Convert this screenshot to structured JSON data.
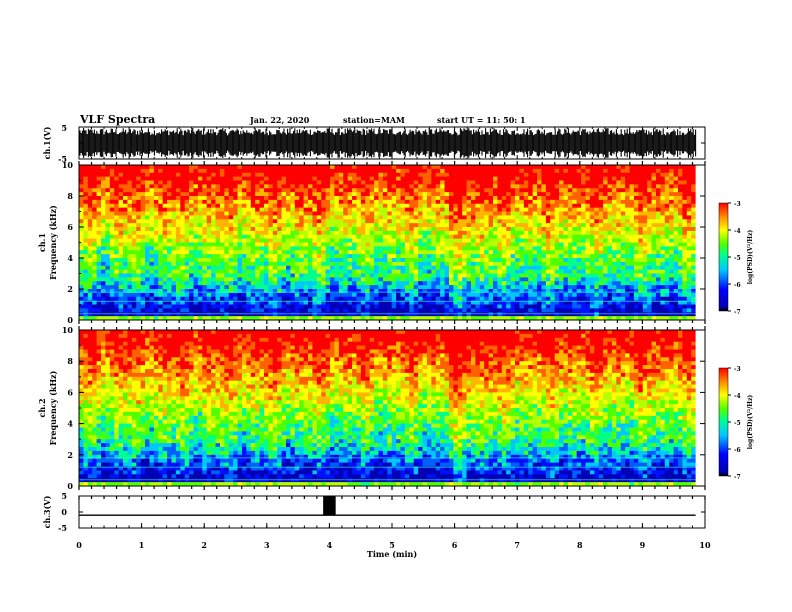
{
  "header": {
    "title": "VLF Spectra",
    "date": "Jan. 22, 2020",
    "station": "station=MAM",
    "start": "start UT =  11: 50: 1"
  },
  "colors": {
    "ink": "#000000",
    "colormap": [
      "#0000b4",
      "#0000ff",
      "#00c8ff",
      "#00ff8c",
      "#50ff00",
      "#ffff00",
      "#ff8c00",
      "#ff0000"
    ]
  },
  "chart_data": [
    {
      "type": "line",
      "name": "ch1-waveform",
      "ylabel": "ch.1(V)",
      "ylim": [
        -5,
        5
      ],
      "yticks": [
        "5",
        "-5"
      ],
      "xlim": [
        0,
        10
      ],
      "description_values": {
        "min": -5,
        "max": 5
      }
    },
    {
      "type": "heatmap",
      "name": "ch1-spectrogram",
      "ylabel": "ch.1\nFrequency (kHz)",
      "ylim": [
        0,
        10
      ],
      "yticks": [
        "0",
        "2",
        "4",
        "6",
        "8",
        "10"
      ],
      "xlim": [
        0,
        10
      ],
      "colorbar": {
        "label": "log(PSD)(V²/Hz)",
        "range": [
          -7,
          -3
        ],
        "ticks": [
          "-3",
          "-4",
          "-5",
          "-6",
          "-7"
        ]
      }
    },
    {
      "type": "heatmap",
      "name": "ch2-spectrogram",
      "ylabel": "ch.2\nFrequency (kHz)",
      "ylim": [
        0,
        10
      ],
      "yticks": [
        "0",
        "2",
        "4",
        "6",
        "8",
        "10"
      ],
      "xlim": [
        0,
        10
      ],
      "colorbar": {
        "label": "log(PSD)(V²/Hz)",
        "range": [
          -7,
          -3
        ],
        "ticks": [
          "-3",
          "-4",
          "-5",
          "-6",
          "-7"
        ]
      }
    },
    {
      "type": "line",
      "name": "ch3-level",
      "ylabel": "ch.3(V)",
      "ylim": [
        -5,
        5
      ],
      "yticks": [
        "5",
        "0",
        "-5"
      ],
      "xlim": [
        0,
        10
      ],
      "xlabel": "Time (min)",
      "xticks": [
        "0",
        "1",
        "2",
        "3",
        "4",
        "5",
        "6",
        "7",
        "8",
        "9",
        "10"
      ],
      "values": {
        "baseline": -1,
        "pulse": {
          "start": 3.9,
          "end": 4.1,
          "level": 5
        }
      }
    }
  ]
}
